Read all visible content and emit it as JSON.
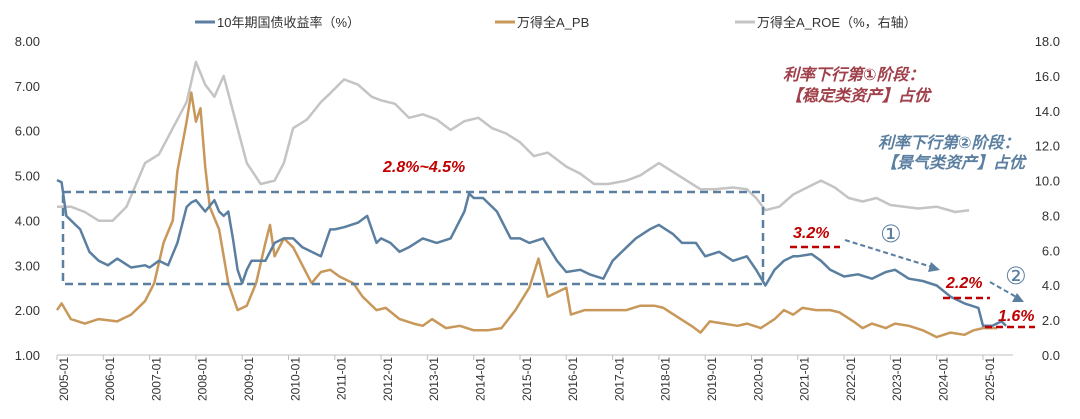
{
  "chart_data": {
    "type": "line",
    "legend_position": "top",
    "legend": [
      "10年期国债收益率（%）",
      "万得全A_PB",
      "万得全A_ROE（%，右轴）"
    ],
    "colors": {
      "yield": "#5b7fa0",
      "pb": "#c8975a",
      "roe": "#c4c4c4",
      "red": "#c00000",
      "maroon": "#a0404a",
      "blue": "#5b7fa0"
    },
    "y_left": {
      "range": [
        1,
        8
      ],
      "ticks": [
        "1.00",
        "2.00",
        "3.00",
        "4.00",
        "5.00",
        "6.00",
        "7.00",
        "8.00"
      ]
    },
    "y_right": {
      "range": [
        0,
        18
      ],
      "ticks": [
        "0.0",
        "2.0",
        "4.0",
        "6.0",
        "8.0",
        "10.0",
        "12.0",
        "14.0",
        "16.0",
        "18.0"
      ]
    },
    "x_ticks": [
      "2005-01",
      "2006-01",
      "2007-01",
      "2008-01",
      "2009-01",
      "2010-01",
      "2011-01",
      "2012-01",
      "2013-01",
      "2014-01",
      "2015-01",
      "2016-01",
      "2017-01",
      "2018-01",
      "2019-01",
      "2020-01",
      "2021-01",
      "2022-01",
      "2023-01",
      "2024-01",
      "2025-01"
    ],
    "series": [
      {
        "name": "10年期国债收益率（%）",
        "axis": "left",
        "points": [
          [
            2005,
            4.9
          ],
          [
            2005.1,
            4.85
          ],
          [
            2005.2,
            4.1
          ],
          [
            2005.5,
            3.8
          ],
          [
            2005.7,
            3.3
          ],
          [
            2005.9,
            3.1
          ],
          [
            2006.1,
            3.0
          ],
          [
            2006.3,
            3.15
          ],
          [
            2006.6,
            2.95
          ],
          [
            2006.9,
            3.0
          ],
          [
            2007.0,
            2.95
          ],
          [
            2007.2,
            3.1
          ],
          [
            2007.4,
            3.0
          ],
          [
            2007.6,
            3.5
          ],
          [
            2007.8,
            4.3
          ],
          [
            2007.9,
            4.4
          ],
          [
            2008.0,
            4.45
          ],
          [
            2008.2,
            4.2
          ],
          [
            2008.4,
            4.45
          ],
          [
            2008.5,
            4.2
          ],
          [
            2008.6,
            4.1
          ],
          [
            2008.7,
            4.2
          ],
          [
            2008.8,
            3.6
          ],
          [
            2008.9,
            2.9
          ],
          [
            2009.0,
            2.6
          ],
          [
            2009.1,
            2.9
          ],
          [
            2009.2,
            3.1
          ],
          [
            2009.5,
            3.1
          ],
          [
            2009.7,
            3.5
          ],
          [
            2009.9,
            3.6
          ],
          [
            2010.1,
            3.6
          ],
          [
            2010.3,
            3.4
          ],
          [
            2010.5,
            3.3
          ],
          [
            2010.7,
            3.2
          ],
          [
            2010.9,
            3.8
          ],
          [
            2011.0,
            3.8
          ],
          [
            2011.2,
            3.85
          ],
          [
            2011.5,
            3.95
          ],
          [
            2011.7,
            4.1
          ],
          [
            2011.9,
            3.5
          ],
          [
            2012.0,
            3.6
          ],
          [
            2012.2,
            3.5
          ],
          [
            2012.4,
            3.3
          ],
          [
            2012.6,
            3.4
          ],
          [
            2012.9,
            3.6
          ],
          [
            2013.2,
            3.5
          ],
          [
            2013.5,
            3.6
          ],
          [
            2013.8,
            4.2
          ],
          [
            2013.9,
            4.6
          ],
          [
            2014.0,
            4.5
          ],
          [
            2014.2,
            4.5
          ],
          [
            2014.5,
            4.2
          ],
          [
            2014.8,
            3.6
          ],
          [
            2015.0,
            3.6
          ],
          [
            2015.2,
            3.5
          ],
          [
            2015.5,
            3.6
          ],
          [
            2015.8,
            3.1
          ],
          [
            2016.0,
            2.85
          ],
          [
            2016.3,
            2.9
          ],
          [
            2016.5,
            2.8
          ],
          [
            2016.8,
            2.7
          ],
          [
            2017.0,
            3.1
          ],
          [
            2017.3,
            3.4
          ],
          [
            2017.5,
            3.6
          ],
          [
            2017.8,
            3.8
          ],
          [
            2018.0,
            3.9
          ],
          [
            2018.3,
            3.7
          ],
          [
            2018.5,
            3.5
          ],
          [
            2018.8,
            3.5
          ],
          [
            2019.0,
            3.2
          ],
          [
            2019.3,
            3.3
          ],
          [
            2019.6,
            3.1
          ],
          [
            2019.9,
            3.2
          ],
          [
            2020.1,
            2.9
          ],
          [
            2020.3,
            2.55
          ],
          [
            2020.5,
            2.9
          ],
          [
            2020.7,
            3.1
          ],
          [
            2020.9,
            3.2
          ],
          [
            2021.0,
            3.2
          ],
          [
            2021.3,
            3.25
          ],
          [
            2021.5,
            3.1
          ],
          [
            2021.7,
            2.9
          ],
          [
            2022.0,
            2.75
          ],
          [
            2022.3,
            2.8
          ],
          [
            2022.6,
            2.7
          ],
          [
            2022.9,
            2.85
          ],
          [
            2023.1,
            2.9
          ],
          [
            2023.4,
            2.7
          ],
          [
            2023.7,
            2.65
          ],
          [
            2024.0,
            2.55
          ],
          [
            2024.3,
            2.3
          ],
          [
            2024.6,
            2.15
          ],
          [
            2024.9,
            2.05
          ],
          [
            2025.0,
            1.65
          ],
          [
            2025.2,
            1.65
          ],
          [
            2025.4,
            1.75
          ],
          [
            2025.5,
            1.65
          ]
        ]
      },
      {
        "name": "万得全A_PB",
        "axis": "left",
        "points": [
          [
            2005,
            2.0
          ],
          [
            2005.1,
            2.15
          ],
          [
            2005.3,
            1.8
          ],
          [
            2005.6,
            1.7
          ],
          [
            2005.9,
            1.8
          ],
          [
            2006.3,
            1.75
          ],
          [
            2006.6,
            1.9
          ],
          [
            2006.9,
            2.2
          ],
          [
            2007.1,
            2.6
          ],
          [
            2007.3,
            3.5
          ],
          [
            2007.5,
            4.0
          ],
          [
            2007.6,
            5.1
          ],
          [
            2007.8,
            6.2
          ],
          [
            2007.9,
            6.85
          ],
          [
            2008.0,
            6.2
          ],
          [
            2008.1,
            6.5
          ],
          [
            2008.2,
            5.2
          ],
          [
            2008.3,
            4.3
          ],
          [
            2008.5,
            3.8
          ],
          [
            2008.7,
            2.6
          ],
          [
            2008.9,
            2.0
          ],
          [
            2009.1,
            2.1
          ],
          [
            2009.3,
            2.6
          ],
          [
            2009.5,
            3.5
          ],
          [
            2009.6,
            3.9
          ],
          [
            2009.7,
            3.2
          ],
          [
            2009.9,
            3.6
          ],
          [
            2010.1,
            3.4
          ],
          [
            2010.3,
            3.0
          ],
          [
            2010.5,
            2.6
          ],
          [
            2010.7,
            2.85
          ],
          [
            2010.9,
            2.9
          ],
          [
            2011.1,
            2.75
          ],
          [
            2011.4,
            2.6
          ],
          [
            2011.6,
            2.3
          ],
          [
            2011.9,
            2.0
          ],
          [
            2012.1,
            2.05
          ],
          [
            2012.4,
            1.8
          ],
          [
            2012.7,
            1.7
          ],
          [
            2012.9,
            1.65
          ],
          [
            2013.1,
            1.8
          ],
          [
            2013.4,
            1.6
          ],
          [
            2013.7,
            1.65
          ],
          [
            2014.0,
            1.55
          ],
          [
            2014.3,
            1.55
          ],
          [
            2014.6,
            1.6
          ],
          [
            2014.9,
            2.0
          ],
          [
            2015.2,
            2.5
          ],
          [
            2015.4,
            3.15
          ],
          [
            2015.6,
            2.3
          ],
          [
            2015.8,
            2.4
          ],
          [
            2016.0,
            2.5
          ],
          [
            2016.1,
            1.9
          ],
          [
            2016.4,
            2.0
          ],
          [
            2016.7,
            2.0
          ],
          [
            2017.0,
            2.0
          ],
          [
            2017.3,
            2.0
          ],
          [
            2017.6,
            2.1
          ],
          [
            2017.9,
            2.1
          ],
          [
            2018.1,
            2.05
          ],
          [
            2018.4,
            1.85
          ],
          [
            2018.7,
            1.65
          ],
          [
            2018.9,
            1.5
          ],
          [
            2019.1,
            1.75
          ],
          [
            2019.4,
            1.7
          ],
          [
            2019.7,
            1.65
          ],
          [
            2019.9,
            1.7
          ],
          [
            2020.2,
            1.6
          ],
          [
            2020.5,
            1.8
          ],
          [
            2020.7,
            2.0
          ],
          [
            2020.9,
            1.9
          ],
          [
            2021.1,
            2.05
          ],
          [
            2021.4,
            2.0
          ],
          [
            2021.7,
            2.0
          ],
          [
            2021.9,
            1.95
          ],
          [
            2022.2,
            1.75
          ],
          [
            2022.4,
            1.6
          ],
          [
            2022.6,
            1.7
          ],
          [
            2022.9,
            1.6
          ],
          [
            2023.1,
            1.7
          ],
          [
            2023.4,
            1.65
          ],
          [
            2023.7,
            1.55
          ],
          [
            2024.0,
            1.4
          ],
          [
            2024.3,
            1.5
          ],
          [
            2024.6,
            1.45
          ],
          [
            2024.8,
            1.55
          ],
          [
            2025.0,
            1.6
          ],
          [
            2025.3,
            1.6
          ]
        ]
      },
      {
        "name": "万得全A_ROE（%，右轴）",
        "axis": "right",
        "points": [
          [
            2005,
            8.5
          ],
          [
            2005.3,
            8.5
          ],
          [
            2005.6,
            8.2
          ],
          [
            2005.9,
            7.7
          ],
          [
            2006.2,
            7.7
          ],
          [
            2006.5,
            8.5
          ],
          [
            2006.9,
            11.0
          ],
          [
            2007.2,
            11.5
          ],
          [
            2007.5,
            13.0
          ],
          [
            2007.8,
            14.5
          ],
          [
            2008.0,
            16.8
          ],
          [
            2008.2,
            15.5
          ],
          [
            2008.4,
            14.8
          ],
          [
            2008.6,
            16.0
          ],
          [
            2008.8,
            14.0
          ],
          [
            2009.1,
            11.0
          ],
          [
            2009.4,
            9.8
          ],
          [
            2009.7,
            10.0
          ],
          [
            2009.9,
            11.0
          ],
          [
            2010.1,
            13.0
          ],
          [
            2010.4,
            13.5
          ],
          [
            2010.7,
            14.5
          ],
          [
            2010.9,
            15.0
          ],
          [
            2011.2,
            15.8
          ],
          [
            2011.5,
            15.5
          ],
          [
            2011.8,
            14.8
          ],
          [
            2012.0,
            14.6
          ],
          [
            2012.3,
            14.4
          ],
          [
            2012.6,
            13.6
          ],
          [
            2012.9,
            13.8
          ],
          [
            2013.2,
            13.5
          ],
          [
            2013.5,
            12.9
          ],
          [
            2013.8,
            13.4
          ],
          [
            2014.1,
            13.6
          ],
          [
            2014.4,
            13.0
          ],
          [
            2014.7,
            12.7
          ],
          [
            2015.0,
            12.2
          ],
          [
            2015.3,
            11.4
          ],
          [
            2015.6,
            11.6
          ],
          [
            2016.0,
            10.8
          ],
          [
            2016.3,
            10.4
          ],
          [
            2016.6,
            9.8
          ],
          [
            2016.9,
            9.8
          ],
          [
            2017.3,
            10.0
          ],
          [
            2017.6,
            10.3
          ],
          [
            2018.0,
            11.0
          ],
          [
            2018.3,
            10.5
          ],
          [
            2018.6,
            10.0
          ],
          [
            2018.9,
            9.5
          ],
          [
            2019.2,
            9.5
          ],
          [
            2019.6,
            9.6
          ],
          [
            2019.9,
            9.5
          ],
          [
            2020.1,
            9.0
          ],
          [
            2020.3,
            8.3
          ],
          [
            2020.6,
            8.5
          ],
          [
            2020.9,
            9.2
          ],
          [
            2021.2,
            9.6
          ],
          [
            2021.5,
            10.0
          ],
          [
            2021.8,
            9.6
          ],
          [
            2022.1,
            9.0
          ],
          [
            2022.4,
            8.8
          ],
          [
            2022.7,
            9.0
          ],
          [
            2023.0,
            8.6
          ],
          [
            2023.3,
            8.5
          ],
          [
            2023.6,
            8.4
          ],
          [
            2024.0,
            8.5
          ],
          [
            2024.4,
            8.2
          ],
          [
            2024.7,
            8.3
          ]
        ]
      }
    ],
    "annotations": {
      "range_label": "2.8%~4.5%",
      "level1": "3.2%",
      "level2": "2.2%",
      "level3": "1.6%",
      "circle1": "①",
      "circle2": "②",
      "stage1_line1": "利率下行第①阶段：",
      "stage1_line2": "【稳定类资产】占优",
      "stage2_line1": "利率下行第②阶段：",
      "stage2_line2": "【景气类资产】占优"
    }
  }
}
